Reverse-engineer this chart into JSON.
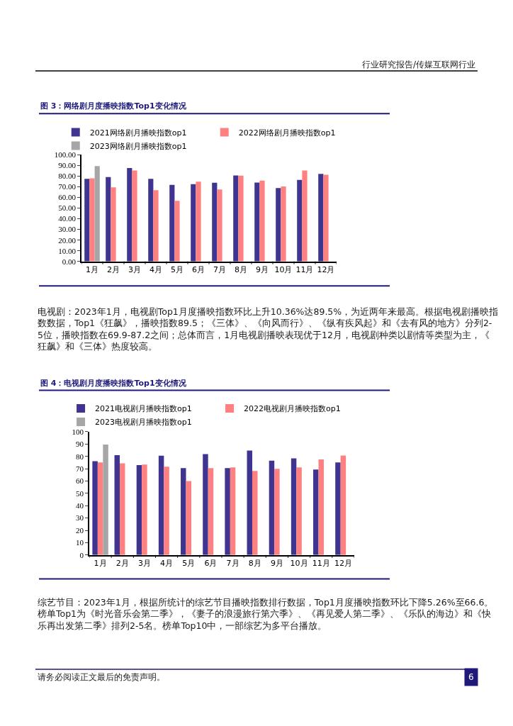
{
  "chart_data": [
    {
      "type": "bar",
      "title": "图 3：网络剧月度播映指数Top1变化情况",
      "categories": [
        "1月",
        "2月",
        "3月",
        "4月",
        "5月",
        "6月",
        "7月",
        "8月",
        "9月",
        "10月",
        "11月",
        "12月"
      ],
      "series": [
        {
          "name": "2021网络剧月播映指数op1",
          "color": "#3f3590",
          "values": [
            77.6,
            79.2,
            87.7,
            77.6,
            71.9,
            72.6,
            73.9,
            80.7,
            74.1,
            68.9,
            76.5,
            82.2
          ]
        },
        {
          "name": "2022网络剧月播映指数op1",
          "color": "#ff8080",
          "values": [
            78.1,
            69.5,
            85.3,
            66.9,
            56.8,
            74.8,
            67.5,
            80.5,
            75.9,
            70.4,
            85.3,
            81.4
          ]
        },
        {
          "name": "2023网络剧月播映指数op1",
          "color": "#a6a6a6",
          "values": [
            89.5,
            null,
            null,
            null,
            null,
            null,
            null,
            null,
            null,
            null,
            null,
            null
          ]
        }
      ],
      "ylim": [
        0,
        100
      ],
      "yticks": [
        {
          "value": 0,
          "label": "0.00"
        },
        {
          "value": 10,
          "label": "10.00"
        },
        {
          "value": 20,
          "label": "20.00"
        },
        {
          "value": 30,
          "label": "30.00"
        },
        {
          "value": 40,
          "label": "40.00"
        },
        {
          "value": 50,
          "label": "50.00"
        },
        {
          "value": 60,
          "label": "60.00"
        },
        {
          "value": 70,
          "label": "70.00"
        },
        {
          "value": 80,
          "label": "80.00"
        },
        {
          "value": 90,
          "label": "90.00"
        },
        {
          "value": 100,
          "label": "100.00"
        }
      ],
      "grid": false,
      "legend": "top",
      "annotations": [
        "行业研究报告/传媒互联网行业",
        "电视剧：2023年1月，电视剧Top1月度播映指数环比上升10.36%达89.5%，为近两年来最高。根据电视剧播映指数数据，Top1《狂飙》，播映指数89.5；《三体》、《向风而行》、《纵有疾风起》和《去有风的地方》分列2-5位，播映指数在69.9-87.2之间；总体而言，1月电视剧播映表现优于12月，电视剧种类以剧情等类型为主，《狂飙》和《三体》热度较高。"
      ]
    },
    {
      "type": "bar",
      "title": "图 4：电视剧月度播映指数Top1变化情况",
      "categories": [
        "1月",
        "2月",
        "3月",
        "4月",
        "5月",
        "6月",
        "7月",
        "8月",
        "9月",
        "10月",
        "11月",
        "12月"
      ],
      "series": [
        {
          "name": "2021电视剧月播映指数op1",
          "color": "#3f3590",
          "values": [
            76.1,
            80.9,
            72.9,
            80.5,
            70.5,
            81.8,
            70.5,
            84.7,
            76.5,
            78.4,
            69.3,
            75.0
          ]
        },
        {
          "name": "2022电视剧月播映指数op1",
          "color": "#ff8080",
          "values": [
            75.0,
            74.4,
            73.3,
            71.6,
            60.0,
            70.5,
            71.0,
            68.2,
            69.9,
            71.0,
            77.5,
            80.7
          ]
        },
        {
          "name": "2023电视剧月播映指数op1",
          "color": "#a6a6a6",
          "values": [
            89.5,
            null,
            null,
            null,
            null,
            null,
            null,
            null,
            null,
            null,
            null,
            null
          ]
        }
      ],
      "ylim": [
        0,
        100
      ],
      "yticks": [
        0,
        10,
        20,
        30,
        40,
        50,
        60,
        70,
        80,
        90,
        100
      ],
      "grid": false,
      "legend": "top",
      "annotations": [
        "综艺节目：2023年1月，根据所统计的综艺节目播映指数排行数据，Top1月度播映指数环比下降5.26%至66.6。榜单Top1为《时光音乐会第二季》，《妻子的浪漫旅行第六季》、《再见爱人第二季》、《乐队的海边》和《快乐再出发第二季》排列2-5名。榜单Top10中，一部综艺为多平台播放。",
        "请务必阅读正文最后的免责声明。",
        "6"
      ]
    }
  ]
}
